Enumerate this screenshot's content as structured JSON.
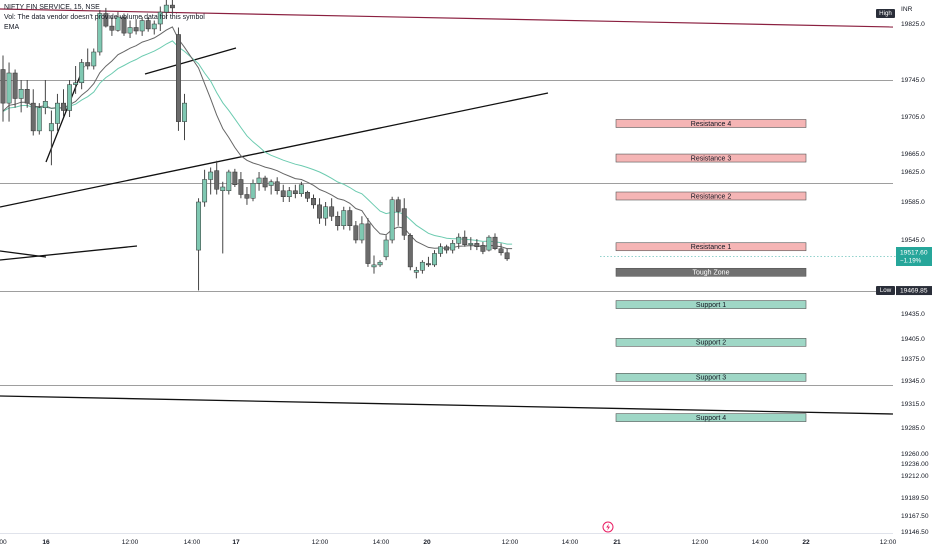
{
  "legend": {
    "symbol": "NIFTY FIN SERVICE, 15, NSE",
    "volume_note": "Vol: The data vendor doesn't provide volume data for this symbol",
    "indicator": "EMA"
  },
  "axis": {
    "currency": "INR",
    "high_label": "High",
    "low_label": "Low",
    "low_value": "19469.85",
    "last_price": "19517.60",
    "last_change": "−1.19%"
  },
  "colors": {
    "up": "#7fc8b2",
    "down": "#6b6b6b",
    "wick": "#444444",
    "ema_fast": "#666666",
    "ema_slow": "#6ccbb0",
    "resistance_fill": "#f5b5b5",
    "support_fill": "#9fd7c6",
    "tough_fill": "#707070",
    "trendline": "#111111",
    "top_line": "#8b2040",
    "hline": "#9e9e9e",
    "price_tag": "#26a69a"
  },
  "chart_data": {
    "type": "candlestick",
    "y_ticks": [
      19825.0,
      19745.0,
      19705.0,
      19665.0,
      19625.0,
      19585.0,
      19545.0,
      19435.0,
      19405.0,
      19375.0,
      19345.0,
      19315.0,
      19285.0,
      19260.0,
      19236.0,
      19212.0,
      19189.5,
      19167.5,
      19146.5
    ],
    "y_tick_labels": [
      "19825.0",
      "19745.0",
      "19705.0",
      "19665.0",
      "19625.0",
      "19585.0",
      "19545.0",
      "19435.0",
      "19405.0",
      "19375.0",
      "19345.0",
      "19315.0",
      "19285.0",
      "19260.00",
      "19236.00",
      "19212.00",
      "19189.50",
      "19167.50",
      "19146.50"
    ],
    "x_ticks": [
      "00",
      "16",
      "12:00",
      "14:00",
      "17",
      "12:00",
      "14:00",
      "20",
      "12:00",
      "14:00",
      "21",
      "12:00",
      "14:00",
      "22",
      "12:00"
    ],
    "horizontal_levels": [
      19745,
      19610,
      19469.85,
      19340
    ],
    "zones": [
      {
        "label": "Resistance 4",
        "kind": "resistance",
        "value": 19698
      },
      {
        "label": "Resistance 3",
        "kind": "resistance",
        "value": 19656
      },
      {
        "label": "Resistance 2",
        "kind": "resistance",
        "value": 19593
      },
      {
        "label": "Resistance 1",
        "kind": "resistance",
        "value": 19535
      },
      {
        "label": "Tough Zone",
        "kind": "tough",
        "value": 19497
      },
      {
        "label": "Support 1",
        "kind": "support",
        "value": 19449
      },
      {
        "label": "Support 2",
        "kind": "support",
        "value": 19400
      },
      {
        "label": "Support 3",
        "kind": "support",
        "value": 19350
      },
      {
        "label": "Support 4",
        "kind": "support",
        "value": 19298
      }
    ],
    "candles": [
      [
        19760,
        19780,
        19700,
        19720
      ],
      [
        19720,
        19770,
        19700,
        19755
      ],
      [
        19755,
        19760,
        19715,
        19725
      ],
      [
        19725,
        19745,
        19710,
        19735
      ],
      [
        19735,
        19745,
        19715,
        19720
      ],
      [
        19720,
        19735,
        19685,
        19690
      ],
      [
        19690,
        19720,
        19686,
        19715
      ],
      [
        19715,
        19745,
        19708,
        19722
      ],
      [
        19690,
        19712,
        19640,
        19698
      ],
      [
        19698,
        19730,
        19690,
        19720
      ],
      [
        19720,
        19735,
        19705,
        19712
      ],
      [
        19712,
        19745,
        19705,
        19740
      ],
      [
        19740,
        19765,
        19730,
        19742
      ],
      [
        19742,
        19775,
        19735,
        19770
      ],
      [
        19770,
        19790,
        19760,
        19765
      ],
      [
        19765,
        19790,
        19760,
        19785
      ],
      [
        19785,
        19845,
        19780,
        19840
      ],
      [
        19840,
        19848,
        19820,
        19822
      ],
      [
        19822,
        19836,
        19808,
        19816
      ],
      [
        19816,
        19842,
        19814,
        19835
      ],
      [
        19835,
        19840,
        19808,
        19812
      ],
      [
        19812,
        19830,
        19805,
        19820
      ],
      [
        19820,
        19832,
        19810,
        19815
      ],
      [
        19815,
        19835,
        19808,
        19830
      ],
      [
        19830,
        19834,
        19814,
        19818
      ],
      [
        19818,
        19830,
        19810,
        19825
      ],
      [
        19825,
        19850,
        19815,
        19842
      ],
      [
        19842,
        19860,
        19832,
        19852
      ],
      [
        19852,
        19865,
        19840,
        19848
      ],
      [
        19810,
        19820,
        19690,
        19700
      ],
      [
        19700,
        19730,
        19680,
        19720
      ],
      [
        19530,
        19590,
        19470,
        19585
      ],
      [
        19585,
        19630,
        19580,
        19615
      ],
      [
        19615,
        19635,
        19595,
        19625
      ],
      [
        19628,
        19650,
        19595,
        19602
      ],
      [
        19600,
        19612,
        19525,
        19605
      ],
      [
        19600,
        19630,
        19595,
        19625
      ],
      [
        19625,
        19632,
        19605,
        19608
      ],
      [
        19615,
        19625,
        19590,
        19595
      ],
      [
        19595,
        19605,
        19582,
        19590
      ],
      [
        19590,
        19615,
        19586,
        19610
      ],
      [
        19610,
        19625,
        19600,
        19617
      ],
      [
        19617,
        19620,
        19600,
        19605
      ],
      [
        19607,
        19615,
        19595,
        19612
      ],
      [
        19612,
        19618,
        19595,
        19600
      ],
      [
        19600,
        19608,
        19585,
        19592
      ],
      [
        19592,
        19605,
        19585,
        19600
      ],
      [
        19600,
        19608,
        19590,
        19596
      ],
      [
        19596,
        19612,
        19592,
        19608
      ],
      [
        19598,
        19600,
        19585,
        19590
      ],
      [
        19590,
        19595,
        19578,
        19582
      ],
      [
        19582,
        19590,
        19562,
        19568
      ],
      [
        19568,
        19585,
        19560,
        19580
      ],
      [
        19580,
        19590,
        19565,
        19570
      ],
      [
        19570,
        19575,
        19555,
        19560
      ],
      [
        19560,
        19580,
        19556,
        19576
      ],
      [
        19576,
        19580,
        19555,
        19560
      ],
      [
        19560,
        19565,
        19540,
        19545
      ],
      [
        19545,
        19570,
        19540,
        19562
      ],
      [
        19562,
        19568,
        19505,
        19510
      ],
      [
        19505,
        19522,
        19495,
        19508
      ],
      [
        19508,
        19515,
        19505,
        19512
      ],
      [
        19520,
        19550,
        19515,
        19545
      ],
      [
        19545,
        19592,
        19540,
        19588
      ],
      [
        19588,
        19592,
        19560,
        19575
      ],
      [
        19578,
        19590,
        19545,
        19550
      ],
      [
        19550,
        19552,
        19500,
        19505
      ],
      [
        19497,
        19505,
        19488,
        19500
      ],
      [
        19500,
        19515,
        19495,
        19512
      ],
      [
        19510,
        19520,
        19505,
        19508
      ],
      [
        19508,
        19530,
        19505,
        19525
      ],
      [
        19525,
        19540,
        19520,
        19535
      ],
      [
        19535,
        19538,
        19525,
        19530
      ],
      [
        19530,
        19545,
        19525,
        19540
      ],
      [
        19540,
        19552,
        19532,
        19548
      ],
      [
        19548,
        19555,
        19535,
        19538
      ],
      [
        19538,
        19548,
        19530,
        19540
      ],
      [
        19540,
        19546,
        19530,
        19535
      ],
      [
        19537,
        19542,
        19524,
        19528
      ],
      [
        19530,
        19550,
        19528,
        19548
      ],
      [
        19548,
        19552,
        19530,
        19532
      ],
      [
        19532,
        19540,
        19522,
        19526
      ],
      [
        19526,
        19532,
        19514,
        19517
      ]
    ]
  }
}
